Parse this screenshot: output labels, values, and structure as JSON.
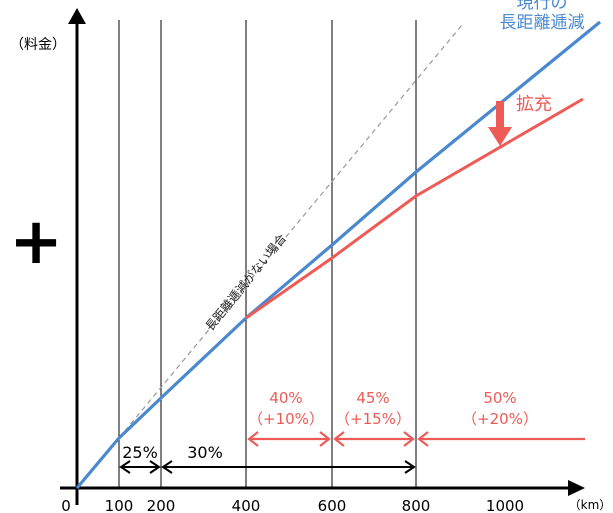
{
  "axes": {
    "y_label": "（料金）",
    "x_unit": "（km）",
    "origin": "0",
    "x_ticks": [
      "100",
      "200",
      "400",
      "600",
      "800",
      "1000"
    ]
  },
  "labels": {
    "current_line": [
      "現行の",
      "長距離逓減"
    ],
    "expansion": "拡充",
    "no_reduction": "長距離逓減がない場合",
    "plus_symbol": "+"
  },
  "rates": [
    {
      "pct": "25%"
    },
    {
      "pct": "30%"
    },
    {
      "pct": "40%",
      "delta": "（+10%）"
    },
    {
      "pct": "45%",
      "delta": "（+15%）"
    },
    {
      "pct": "50%",
      "delta": "（+20%）"
    }
  ],
  "colors": {
    "current": "#4a88d0",
    "expanded": "#ee5b57",
    "axis": "#000000",
    "dashed": "#999999"
  }
}
